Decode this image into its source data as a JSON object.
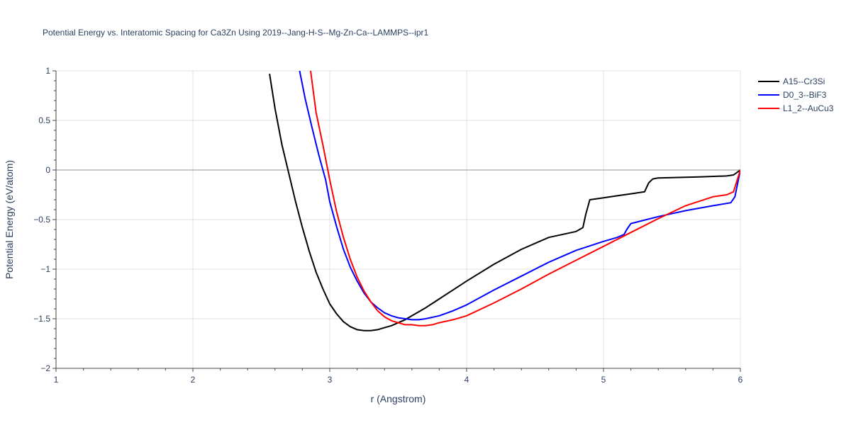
{
  "chart_data": {
    "type": "line",
    "title": "Potential Energy vs. Interatomic Spacing for Ca3Zn Using 2019--Jang-H-S--Mg-Zn-Ca--LAMMPS--ipr1",
    "xlabel": "r (Angstrom)",
    "ylabel": "Potential Energy (eV/atom)",
    "xlim": [
      1,
      6
    ],
    "ylim": [
      -2,
      1
    ],
    "x_ticks": [
      1,
      2,
      3,
      4,
      5,
      6
    ],
    "x_tick_labels": [
      "1",
      "2",
      "3",
      "4",
      "5",
      "6"
    ],
    "y_ticks": [
      1,
      0.5,
      0,
      -0.5,
      -1,
      -1.5,
      -2
    ],
    "y_tick_labels": [
      "1",
      "0.5",
      "0",
      "−0.5",
      "−1",
      "−1.5",
      "−2"
    ],
    "grid": true,
    "legend_position": "top-right",
    "series": [
      {
        "name": "A15--Cr3Si",
        "color": "#000000",
        "x": [
          2.56,
          2.6,
          2.65,
          2.7,
          2.75,
          2.8,
          2.85,
          2.9,
          2.95,
          3.0,
          3.05,
          3.1,
          3.15,
          3.2,
          3.25,
          3.3,
          3.35,
          3.4,
          3.45,
          3.5,
          3.55,
          3.6,
          3.7,
          3.8,
          3.9,
          4.0,
          4.2,
          4.4,
          4.6,
          4.8,
          4.85,
          4.87,
          4.9,
          5.0,
          5.1,
          5.2,
          5.3,
          5.33,
          5.36,
          5.4,
          5.5,
          5.7,
          5.9,
          5.95,
          6.0
        ],
        "y": [
          0.97,
          0.62,
          0.26,
          -0.03,
          -0.32,
          -0.58,
          -0.82,
          -1.03,
          -1.2,
          -1.35,
          -1.45,
          -1.53,
          -1.58,
          -1.61,
          -1.62,
          -1.62,
          -1.61,
          -1.59,
          -1.57,
          -1.54,
          -1.51,
          -1.47,
          -1.39,
          -1.3,
          -1.21,
          -1.12,
          -0.95,
          -0.8,
          -0.68,
          -0.62,
          -0.58,
          -0.45,
          -0.3,
          -0.28,
          -0.26,
          -0.24,
          -0.22,
          -0.13,
          -0.09,
          -0.08,
          -0.077,
          -0.07,
          -0.06,
          -0.05,
          0.0
        ]
      },
      {
        "name": "D0_3--BiF3",
        "color": "#0000ff",
        "x": [
          2.78,
          2.82,
          2.87,
          2.92,
          2.97,
          3.0,
          3.05,
          3.1,
          3.15,
          3.2,
          3.25,
          3.3,
          3.35,
          3.4,
          3.45,
          3.5,
          3.55,
          3.6,
          3.65,
          3.7,
          3.8,
          3.9,
          4.0,
          4.2,
          4.4,
          4.6,
          4.8,
          5.0,
          5.1,
          5.15,
          5.17,
          5.2,
          5.4,
          5.6,
          5.8,
          5.93,
          5.96,
          6.0
        ],
        "y": [
          1.0,
          0.72,
          0.43,
          0.15,
          -0.1,
          -0.32,
          -0.57,
          -0.8,
          -0.98,
          -1.12,
          -1.24,
          -1.33,
          -1.39,
          -1.44,
          -1.47,
          -1.49,
          -1.5,
          -1.51,
          -1.51,
          -1.5,
          -1.47,
          -1.42,
          -1.36,
          -1.21,
          -1.07,
          -0.93,
          -0.81,
          -0.72,
          -0.68,
          -0.65,
          -0.6,
          -0.54,
          -0.47,
          -0.41,
          -0.36,
          -0.33,
          -0.27,
          0.0
        ]
      },
      {
        "name": "L1_2--AuCu3",
        "color": "#ff0000",
        "x": [
          2.86,
          2.9,
          2.95,
          3.0,
          3.05,
          3.1,
          3.15,
          3.2,
          3.25,
          3.3,
          3.35,
          3.4,
          3.45,
          3.5,
          3.55,
          3.6,
          3.65,
          3.7,
          3.75,
          3.8,
          3.9,
          4.0,
          4.2,
          4.4,
          4.6,
          4.8,
          5.0,
          5.2,
          5.4,
          5.6,
          5.8,
          5.9,
          5.95,
          6.0
        ],
        "y": [
          1.0,
          0.58,
          0.25,
          -0.1,
          -0.42,
          -0.68,
          -0.9,
          -1.08,
          -1.22,
          -1.33,
          -1.42,
          -1.48,
          -1.52,
          -1.54,
          -1.56,
          -1.56,
          -1.57,
          -1.57,
          -1.56,
          -1.54,
          -1.51,
          -1.47,
          -1.34,
          -1.2,
          -1.05,
          -0.91,
          -0.77,
          -0.63,
          -0.49,
          -0.36,
          -0.27,
          -0.25,
          -0.22,
          0.0
        ]
      }
    ]
  }
}
